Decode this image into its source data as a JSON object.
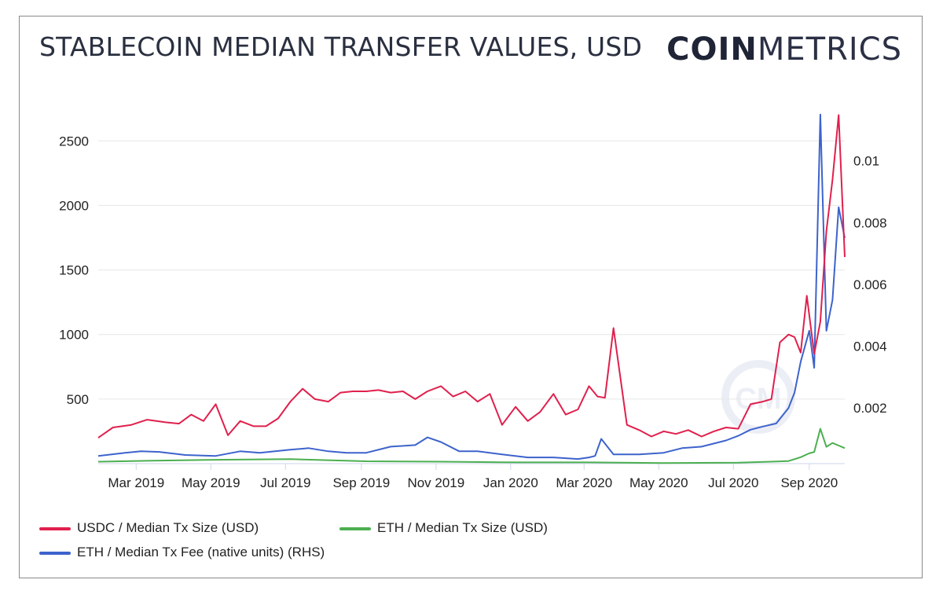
{
  "header": {
    "title": "STABLECOIN MEDIAN TRANSFER VALUES, USD",
    "logo_bold": "COIN",
    "logo_light": "METRICS"
  },
  "colors": {
    "usdc": "#e0204d",
    "eth_size": "#4caf50",
    "eth_fee": "#3d63cc",
    "grid": "#e6e6e6"
  },
  "chart_data": {
    "type": "line",
    "title": "STABLECOIN MEDIAN TRANSFER VALUES, USD",
    "x_range": [
      "2019-01-29",
      "2020-09-30"
    ],
    "x_ticks": [
      "Mar 2019",
      "May 2019",
      "Jul 2019",
      "Sep 2019",
      "Nov 2019",
      "Jan 2020",
      "Mar 2020",
      "May 2020",
      "Jul 2020",
      "Sep 2020"
    ],
    "x_tick_dates": [
      "2019-03-01",
      "2019-05-01",
      "2019-07-01",
      "2019-09-01",
      "2019-11-01",
      "2020-01-01",
      "2020-03-01",
      "2020-05-01",
      "2020-07-01",
      "2020-09-01"
    ],
    "y_left": {
      "ticks": [
        500,
        1000,
        1500,
        2000,
        2500
      ],
      "range": [
        0,
        2800
      ]
    },
    "y_right": {
      "ticks": [
        0.002,
        0.004,
        0.006,
        0.008,
        0.01
      ],
      "tick_labels": [
        "0.002",
        "0.004",
        "0.006",
        "0.008",
        "0.01"
      ],
      "range": [
        0.0002,
        0.0119
      ]
    },
    "grid": true,
    "legend_position": "bottom",
    "series": [
      {
        "name": "USDC / Median Tx Size (USD)",
        "axis": "left",
        "x": [
          "2019-01-29",
          "2019-02-10",
          "2019-02-25",
          "2019-03-10",
          "2019-03-25",
          "2019-04-05",
          "2019-04-15",
          "2019-04-25",
          "2019-05-05",
          "2019-05-15",
          "2019-05-25",
          "2019-06-05",
          "2019-06-15",
          "2019-06-25",
          "2019-07-05",
          "2019-07-15",
          "2019-07-25",
          "2019-08-05",
          "2019-08-15",
          "2019-08-25",
          "2019-09-05",
          "2019-09-15",
          "2019-09-25",
          "2019-10-05",
          "2019-10-15",
          "2019-10-25",
          "2019-11-05",
          "2019-11-15",
          "2019-11-25",
          "2019-12-05",
          "2019-12-15",
          "2019-12-25",
          "2020-01-05",
          "2020-01-15",
          "2020-01-25",
          "2020-02-05",
          "2020-02-15",
          "2020-02-25",
          "2020-03-05",
          "2020-03-12",
          "2020-03-18",
          "2020-03-25",
          "2020-04-05",
          "2020-04-15",
          "2020-04-25",
          "2020-05-05",
          "2020-05-15",
          "2020-05-25",
          "2020-06-05",
          "2020-06-15",
          "2020-06-25",
          "2020-07-05",
          "2020-07-15",
          "2020-07-25",
          "2020-08-01",
          "2020-08-08",
          "2020-08-15",
          "2020-08-20",
          "2020-08-25",
          "2020-08-30",
          "2020-09-05",
          "2020-09-10",
          "2020-09-15",
          "2020-09-20",
          "2020-09-25",
          "2020-09-30"
        ],
        "values": [
          200,
          280,
          300,
          340,
          320,
          310,
          380,
          330,
          460,
          220,
          330,
          290,
          290,
          350,
          480,
          580,
          500,
          480,
          550,
          560,
          560,
          570,
          550,
          560,
          500,
          560,
          600,
          520,
          560,
          480,
          540,
          300,
          440,
          330,
          400,
          540,
          380,
          420,
          600,
          520,
          510,
          1050,
          300,
          260,
          210,
          250,
          230,
          260,
          210,
          250,
          280,
          270,
          460,
          480,
          500,
          940,
          1000,
          980,
          860,
          1300,
          850,
          1100,
          1800,
          2200,
          2700,
          1600
        ]
      },
      {
        "name": "ETH / Median Tx Size (USD)",
        "axis": "left",
        "x": [
          "2019-01-29",
          "2019-03-10",
          "2019-05-05",
          "2019-07-05",
          "2019-09-05",
          "2019-11-05",
          "2020-01-05",
          "2020-03-05",
          "2020-05-05",
          "2020-07-05",
          "2020-08-01",
          "2020-08-15",
          "2020-08-25",
          "2020-09-01",
          "2020-09-05",
          "2020-09-10",
          "2020-09-15",
          "2020-09-20",
          "2020-09-25",
          "2020-09-30"
        ],
        "values": [
          15,
          22,
          30,
          35,
          18,
          15,
          10,
          10,
          5,
          8,
          15,
          20,
          50,
          80,
          90,
          270,
          130,
          160,
          140,
          120
        ]
      },
      {
        "name": "ETH / Median Tx Fee (native units) (RHS)",
        "axis": "right",
        "x": [
          "2019-01-29",
          "2019-02-20",
          "2019-03-05",
          "2019-03-20",
          "2019-04-10",
          "2019-05-05",
          "2019-05-25",
          "2019-06-10",
          "2019-07-05",
          "2019-07-20",
          "2019-08-05",
          "2019-08-20",
          "2019-09-05",
          "2019-09-25",
          "2019-10-15",
          "2019-10-25",
          "2019-11-05",
          "2019-11-20",
          "2019-12-05",
          "2019-12-25",
          "2020-01-15",
          "2020-02-05",
          "2020-02-25",
          "2020-03-05",
          "2020-03-10",
          "2020-03-15",
          "2020-03-25",
          "2020-04-15",
          "2020-05-05",
          "2020-05-20",
          "2020-06-05",
          "2020-06-25",
          "2020-07-05",
          "2020-07-15",
          "2020-07-25",
          "2020-08-05",
          "2020-08-15",
          "2020-08-20",
          "2020-08-25",
          "2020-09-01",
          "2020-09-05",
          "2020-09-10",
          "2020-09-15",
          "2020-09-20",
          "2020-09-25",
          "2020-09-30"
        ],
        "values": [
          0.00045,
          0.00055,
          0.0006,
          0.00058,
          0.00048,
          0.00045,
          0.0006,
          0.00055,
          0.00065,
          0.0007,
          0.0006,
          0.00055,
          0.00055,
          0.00075,
          0.0008,
          0.00105,
          0.0009,
          0.0006,
          0.0006,
          0.0005,
          0.0004,
          0.0004,
          0.00035,
          0.0004,
          0.00045,
          0.001,
          0.0005,
          0.0005,
          0.00055,
          0.0007,
          0.00075,
          0.00095,
          0.0011,
          0.0013,
          0.0014,
          0.0015,
          0.002,
          0.0025,
          0.0035,
          0.0045,
          0.0033,
          0.0115,
          0.0045,
          0.0055,
          0.0085,
          0.0075
        ]
      }
    ]
  },
  "legend": [
    {
      "label": "USDC / Median Tx Size (USD)",
      "color": "#e0204d"
    },
    {
      "label": "ETH / Median Tx Size (USD)",
      "color": "#4caf50"
    },
    {
      "label": "ETH / Median Tx Fee (native units) (RHS)",
      "color": "#3d63cc"
    }
  ]
}
